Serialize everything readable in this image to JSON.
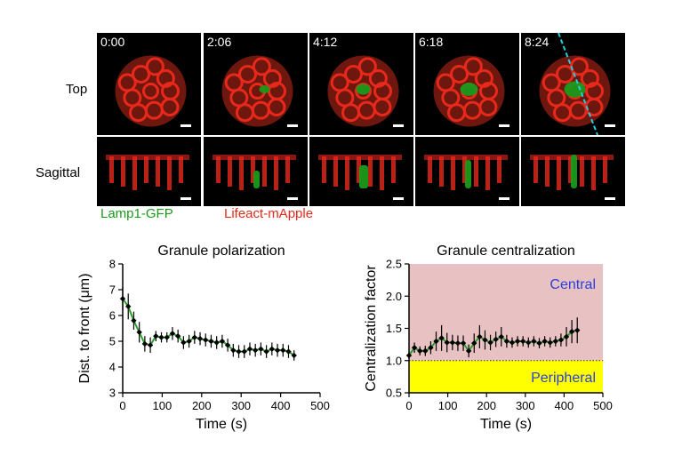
{
  "microscopy": {
    "timepoints": [
      "0:00",
      "2:06",
      "4:12",
      "6:18",
      "8:24"
    ],
    "row_labels": {
      "top": "Top",
      "sagittal": "Sagittal"
    },
    "legend": {
      "green": {
        "label": "Lamp1-GFP",
        "color": "#1a9a1a"
      },
      "red": {
        "label": "Lifeact-mApple",
        "color": "#e8281b"
      }
    },
    "line_color": "#21d0e0"
  },
  "chart_data": [
    {
      "type": "line",
      "title": "Granule polarization",
      "xlabel": "Time (s)",
      "ylabel": "Dist. to front (μm)",
      "xlim": [
        0,
        500
      ],
      "ylim": [
        3,
        8
      ],
      "xticks": [
        0,
        100,
        200,
        300,
        400,
        500
      ],
      "yticks": [
        3,
        4,
        5,
        6,
        7,
        8
      ],
      "series": [
        {
          "x": [
            0,
            14,
            28,
            42,
            56,
            70,
            84,
            98,
            112,
            126,
            140,
            154,
            168,
            182,
            196,
            210,
            224,
            238,
            252,
            266,
            280,
            294,
            308,
            322,
            336,
            350,
            364,
            378,
            392,
            406,
            420,
            434
          ],
          "y": [
            6.65,
            6.35,
            5.8,
            5.35,
            4.9,
            4.85,
            5.2,
            5.15,
            5.15,
            5.3,
            5.2,
            4.95,
            5.0,
            5.15,
            5.1,
            5.05,
            5.0,
            4.95,
            5.0,
            4.85,
            4.65,
            4.6,
            4.6,
            4.7,
            4.65,
            4.7,
            4.6,
            4.7,
            4.65,
            4.65,
            4.6,
            4.45
          ],
          "err": [
            0.45,
            0.5,
            0.35,
            0.4,
            0.3,
            0.3,
            0.2,
            0.2,
            0.2,
            0.25,
            0.25,
            0.25,
            0.25,
            0.25,
            0.25,
            0.25,
            0.25,
            0.25,
            0.25,
            0.25,
            0.25,
            0.25,
            0.25,
            0.25,
            0.25,
            0.25,
            0.25,
            0.25,
            0.25,
            0.25,
            0.25,
            0.2
          ]
        }
      ],
      "trend_color": "#2aa02a",
      "marker_color": "#000000"
    },
    {
      "type": "line",
      "title": "Granule centralization",
      "xlabel": "Time (s)",
      "ylabel": "Centralization factor",
      "xlim": [
        0,
        500
      ],
      "ylim": [
        0.5,
        2.5
      ],
      "xticks": [
        0,
        100,
        200,
        300,
        400,
        500
      ],
      "yticks": [
        0.5,
        1.0,
        1.5,
        2.0,
        2.5
      ],
      "threshold": 1.0,
      "regions": [
        {
          "label": "Central",
          "from": 1.0,
          "to": 2.5,
          "color": "#e8c2c2",
          "text_color": "#2a3fe0"
        },
        {
          "label": "Peripheral",
          "from": 0.5,
          "to": 1.0,
          "color": "#ffff00",
          "text_color": "#2a3fe0"
        }
      ],
      "series": [
        {
          "x": [
            0,
            14,
            28,
            42,
            56,
            70,
            84,
            98,
            112,
            126,
            140,
            154,
            168,
            182,
            196,
            210,
            224,
            238,
            252,
            266,
            280,
            294,
            308,
            322,
            336,
            350,
            364,
            378,
            392,
            406,
            420,
            434
          ],
          "y": [
            1.08,
            1.2,
            1.15,
            1.15,
            1.2,
            1.3,
            1.35,
            1.28,
            1.28,
            1.27,
            1.27,
            1.15,
            1.27,
            1.37,
            1.32,
            1.28,
            1.33,
            1.37,
            1.3,
            1.28,
            1.3,
            1.3,
            1.28,
            1.3,
            1.27,
            1.3,
            1.28,
            1.3,
            1.32,
            1.37,
            1.45,
            1.47
          ],
          "err": [
            0.05,
            0.08,
            0.07,
            0.08,
            0.1,
            0.15,
            0.2,
            0.15,
            0.12,
            0.12,
            0.12,
            0.1,
            0.15,
            0.18,
            0.15,
            0.12,
            0.12,
            0.15,
            0.1,
            0.08,
            0.08,
            0.08,
            0.08,
            0.08,
            0.08,
            0.08,
            0.08,
            0.08,
            0.1,
            0.15,
            0.18,
            0.2
          ]
        }
      ],
      "trend_color": "#2aa02a",
      "marker_color": "#000000",
      "threshold_color": "#333333"
    }
  ]
}
